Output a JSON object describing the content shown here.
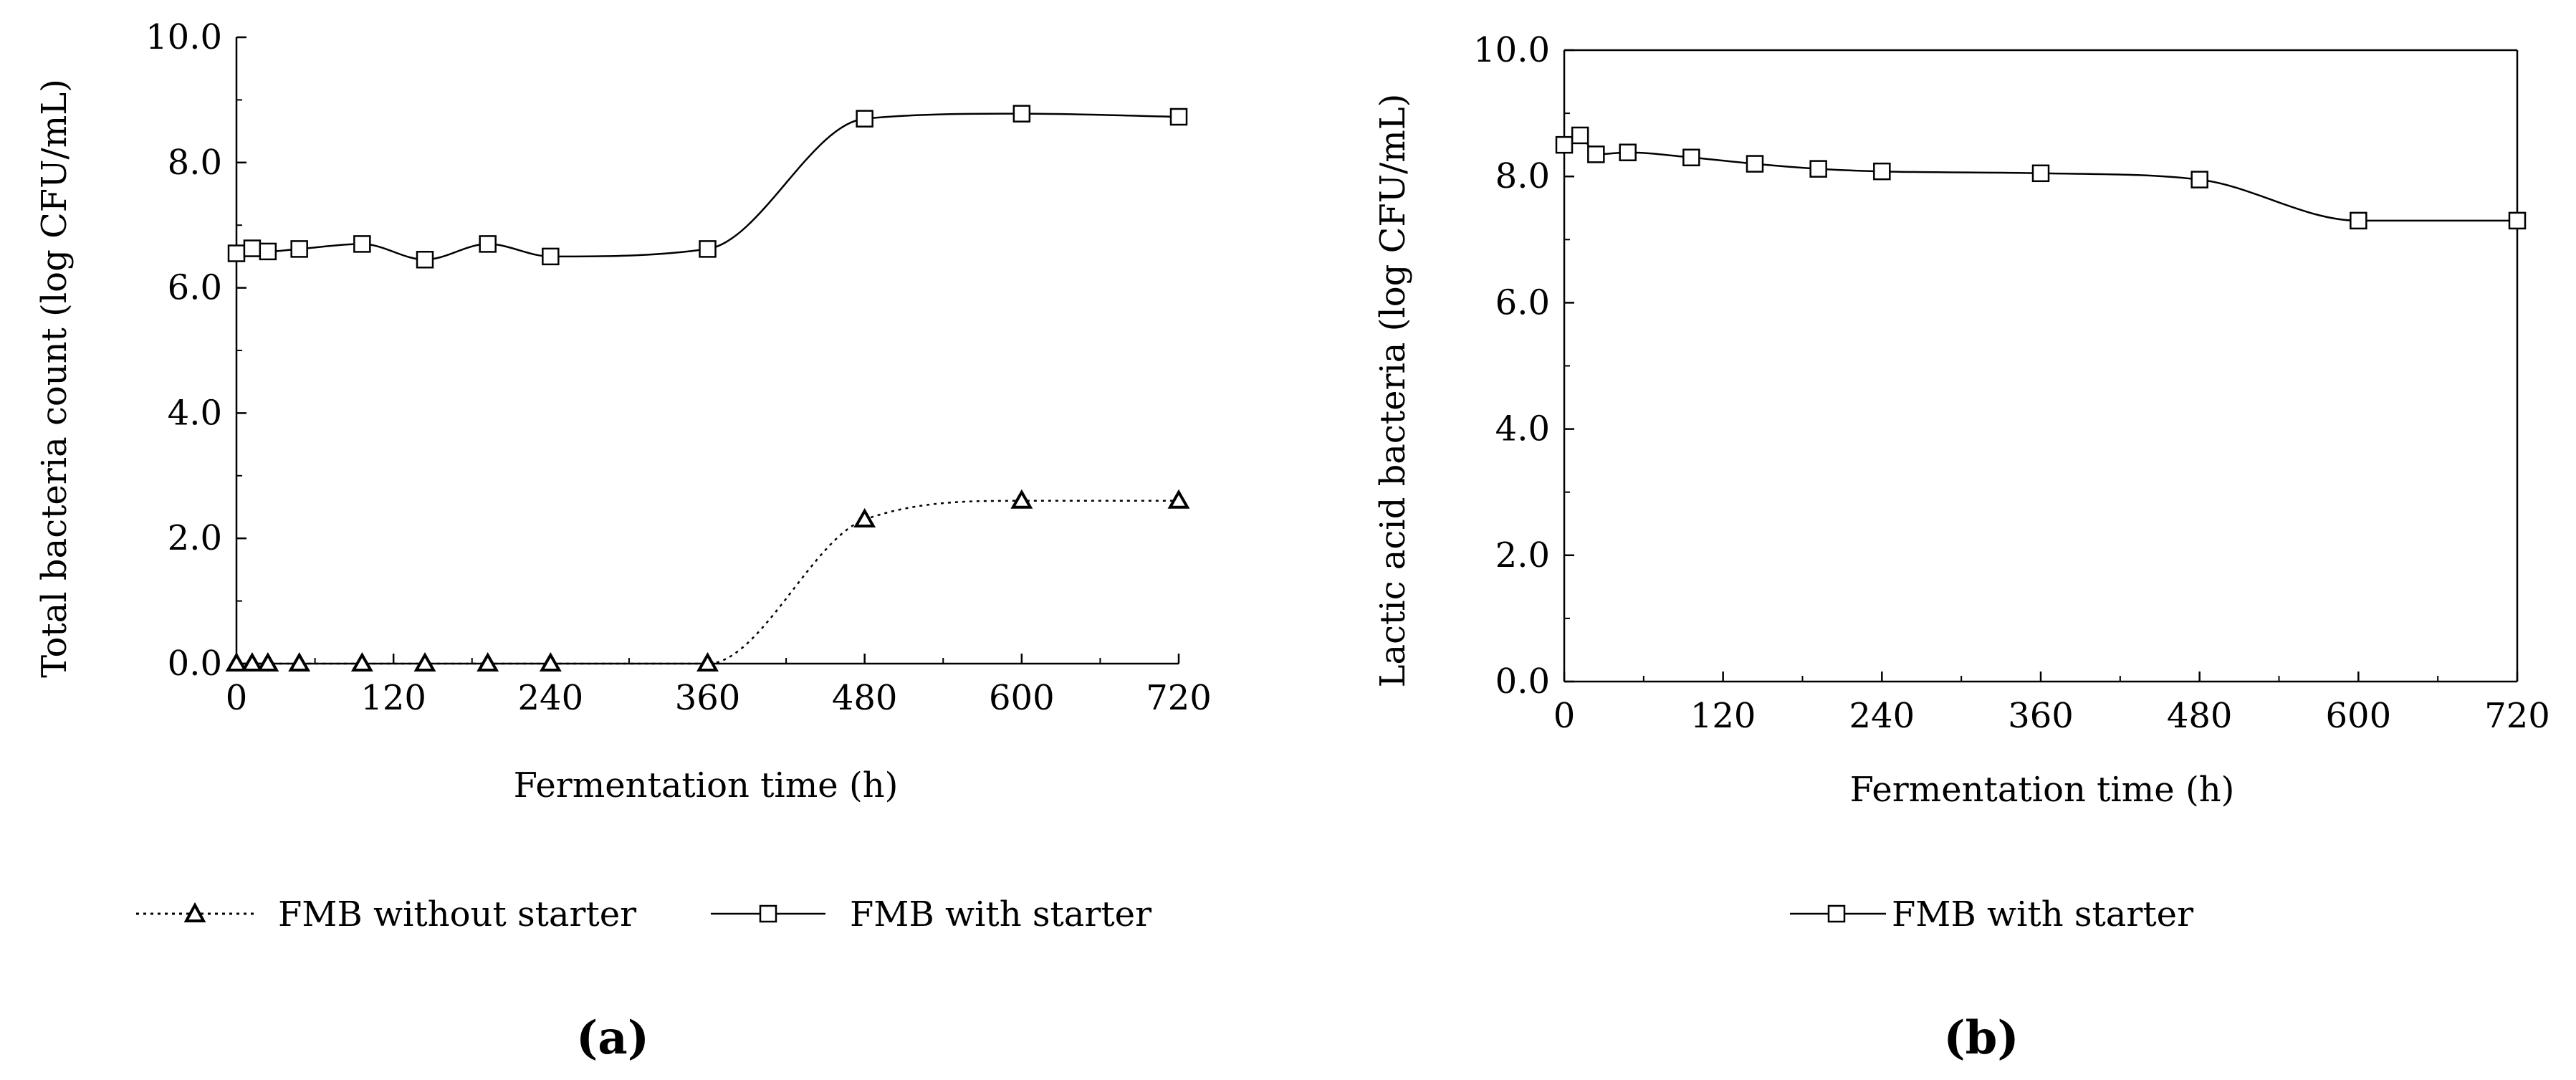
{
  "figure": {
    "panel_a_label": "(a)",
    "panel_b_label": "(b)"
  },
  "colors": {
    "axis": "#000000",
    "line": "#000000",
    "marker_fill": "#ffffff"
  },
  "chart_data": [
    {
      "type": "line",
      "title": "",
      "xlabel": "Fermentation time (h)",
      "ylabel": "Total bacteria count  (log CFU/mL)",
      "xlim": [
        0,
        720
      ],
      "ylim": [
        0,
        10
      ],
      "xticks": [
        0,
        120,
        240,
        360,
        480,
        600,
        720
      ],
      "xtick_labels": [
        "0",
        "120",
        "240",
        "360",
        "480",
        "600",
        "720"
      ],
      "yticks": [
        0,
        2,
        4,
        6,
        8,
        10
      ],
      "ytick_labels": [
        "0.0",
        "2.0",
        "4.0",
        "6.0",
        "8.0",
        "10.0"
      ],
      "grid": false,
      "legend_position": "bottom",
      "series": [
        {
          "name": "FMB without starter",
          "marker": "triangle",
          "line_style": "dotted",
          "x": [
            0,
            12,
            24,
            48,
            96,
            144,
            192,
            240,
            360,
            480,
            600,
            720
          ],
          "y": [
            0.0,
            0.0,
            0.0,
            0.0,
            0.0,
            0.0,
            0.0,
            0.0,
            0.0,
            2.3,
            2.6,
            2.6
          ]
        },
        {
          "name": "FMB with starter",
          "marker": "square",
          "line_style": "solid",
          "x": [
            0,
            12,
            24,
            48,
            96,
            144,
            192,
            240,
            360,
            480,
            600,
            720
          ],
          "y": [
            6.55,
            6.63,
            6.58,
            6.62,
            6.7,
            6.45,
            6.7,
            6.5,
            6.62,
            8.7,
            8.78,
            8.73
          ]
        }
      ]
    },
    {
      "type": "line",
      "title": "",
      "xlabel": "Fermentation time (h)",
      "ylabel": "Lactic acid bacteria (log CFU/mL)",
      "xlim": [
        0,
        720
      ],
      "ylim": [
        0,
        10
      ],
      "xticks": [
        0,
        120,
        240,
        360,
        480,
        600,
        720
      ],
      "xtick_labels": [
        "0",
        "120",
        "240",
        "360",
        "480",
        "600",
        "720"
      ],
      "yticks": [
        0,
        2,
        4,
        6,
        8,
        10
      ],
      "ytick_labels": [
        "0.0",
        "2.0",
        "4.0",
        "6.0",
        "8.0",
        "10.0"
      ],
      "grid": false,
      "legend_position": "bottom",
      "series": [
        {
          "name": "FMB with starter",
          "marker": "square",
          "line_style": "solid",
          "x": [
            0,
            12,
            24,
            48,
            96,
            144,
            192,
            240,
            360,
            480,
            600,
            720
          ],
          "y": [
            8.5,
            8.65,
            8.35,
            8.38,
            8.3,
            8.2,
            8.12,
            8.08,
            8.05,
            7.95,
            7.3,
            7.3
          ]
        }
      ]
    }
  ]
}
